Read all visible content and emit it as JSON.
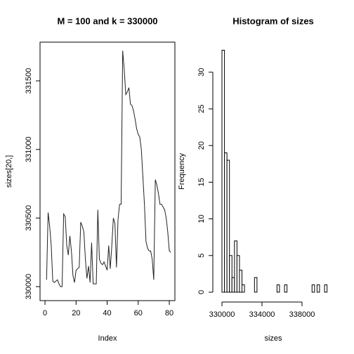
{
  "chart_data": [
    {
      "type": "line",
      "title": "M =  100 and k = 330000",
      "xlabel": "Index",
      "ylabel": "sizes[20,]",
      "color": "#222222",
      "x": [
        1,
        2,
        3,
        4,
        5,
        6,
        7,
        8,
        9,
        10,
        11,
        12,
        13,
        14,
        15,
        16,
        17,
        18,
        19,
        20,
        21,
        22,
        23,
        24,
        25,
        26,
        27,
        28,
        29,
        30,
        31,
        32,
        33,
        34,
        35,
        36,
        37,
        38,
        39,
        40,
        41,
        42,
        43,
        44,
        45,
        46,
        47,
        48,
        49,
        50,
        51,
        52,
        53,
        54,
        55,
        56,
        57,
        58,
        59,
        60,
        61,
        62,
        63,
        64,
        65,
        66,
        67,
        68,
        69,
        70,
        71,
        72,
        73,
        74,
        75,
        76,
        77,
        78,
        79,
        80,
        81
      ],
      "values": [
        330050,
        330540,
        330440,
        330300,
        330040,
        330030,
        330040,
        330050,
        330020,
        330000,
        330000,
        330530,
        330510,
        330300,
        330230,
        330370,
        330260,
        330080,
        330030,
        330120,
        330130,
        330140,
        330470,
        330440,
        330400,
        330200,
        330060,
        330150,
        330030,
        330320,
        330020,
        330020,
        330020,
        330560,
        330200,
        330170,
        330160,
        330180,
        330150,
        330120,
        330300,
        330130,
        330300,
        330500,
        330460,
        330140,
        330490,
        330600,
        330600,
        331720,
        331580,
        331400,
        331420,
        331450,
        331330,
        331320,
        331280,
        331220,
        331150,
        331110,
        331090,
        331000,
        330800,
        330600,
        330330,
        330280,
        330260,
        330260,
        330200,
        330050,
        330780,
        330740,
        330680,
        330600,
        330600,
        330580,
        330560,
        330500,
        330400,
        330260,
        330250
      ],
      "xlim": [
        -3.2,
        83.6
      ],
      "ylim": [
        329898,
        331782
      ],
      "xticks": [
        0,
        20,
        40,
        60,
        80
      ],
      "yticks": [
        330000,
        330500,
        331000,
        331500
      ]
    },
    {
      "type": "histogram",
      "title": "Histogram of sizes",
      "xlabel": "sizes",
      "ylabel": "Frequency",
      "color": "#ffffff",
      "bins": [
        330000,
        330250,
        330500,
        330750,
        331000,
        331250,
        331500,
        331750,
        332000,
        332250,
        332500,
        332750,
        333000,
        333250,
        333500,
        333750,
        334000,
        334250,
        334500,
        334750,
        335000,
        335250,
        335500,
        335750,
        336000,
        336250,
        336500,
        336750,
        337000,
        337250,
        337500,
        337750,
        338000,
        338250,
        338500,
        338750,
        339000,
        339250,
        339500,
        339750,
        340000,
        340250,
        340500
      ],
      "counts": [
        33,
        19,
        18,
        5,
        2,
        7,
        5,
        3,
        1,
        0,
        0,
        0,
        0,
        2,
        0,
        0,
        0,
        0,
        0,
        0,
        0,
        0,
        1,
        0,
        0,
        1,
        0,
        0,
        0,
        0,
        0,
        0,
        0,
        0,
        0,
        0,
        1,
        0,
        1,
        0,
        0,
        1
      ],
      "xlim": [
        329088,
        341158
      ],
      "ylim": [
        -1.15,
        34.1
      ],
      "xticks": [
        330000,
        334000,
        338000
      ],
      "yticks": [
        0,
        5,
        10,
        15,
        20,
        25,
        30
      ]
    }
  ]
}
